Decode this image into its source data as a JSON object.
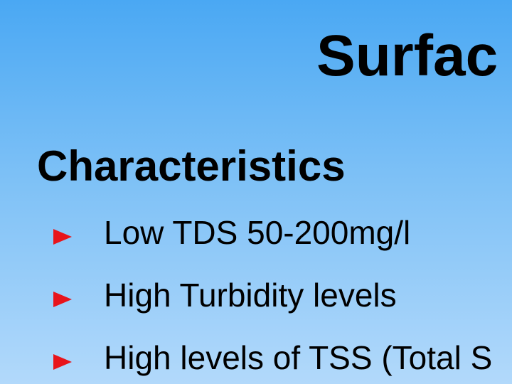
{
  "slide": {
    "title": "Surfac",
    "subtitle": "Characteristics",
    "bullets": [
      {
        "text": "Low TDS 50-200mg/l"
      },
      {
        "text": "High Turbidity levels"
      },
      {
        "text": "High levels of TSS (Total S"
      }
    ],
    "colors": {
      "background_top": "#4aa8f3",
      "background_bottom": "#b2d9fb",
      "bullet_marker": "#e8141b",
      "text": "#000000"
    },
    "icons": {
      "bullet_marker": "right-pointing-triangle-icon"
    }
  }
}
